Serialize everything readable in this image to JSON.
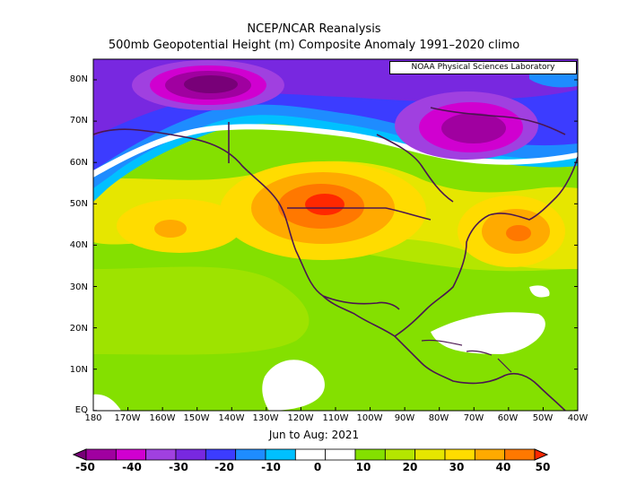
{
  "title_line1": "NCEP/NCAR Reanalysis",
  "title_line2": "500mb Geopotential Height (m) Composite Anomaly 1991–2020 climo",
  "credit": "NOAA Physical Sciences Laboratory",
  "period": "Jun to Aug: 2021",
  "map": {
    "lat_ticks": [
      "80N",
      "70N",
      "60N",
      "50N",
      "40N",
      "30N",
      "20N",
      "10N",
      "EQ"
    ],
    "lon_ticks": [
      "180",
      "170W",
      "160W",
      "150W",
      "140W",
      "130W",
      "120W",
      "110W",
      "100W",
      "90W",
      "80W",
      "70W",
      "60W",
      "50W",
      "40W"
    ]
  },
  "colorbar": {
    "labels": [
      "-50",
      "-40",
      "-30",
      "-20",
      "-10",
      "0",
      "10",
      "20",
      "30",
      "40",
      "50"
    ],
    "colors": [
      "#780078",
      "#a000a0",
      "#d000d0",
      "#a040e0",
      "#7828e0",
      "#3c3cff",
      "#1e8cff",
      "#00c0ff",
      "#ffffff",
      "#ffffff",
      "#84e000",
      "#b4e600",
      "#e6e600",
      "#ffdc00",
      "#ffaa00",
      "#ff7800",
      "#ff2800"
    ]
  }
}
